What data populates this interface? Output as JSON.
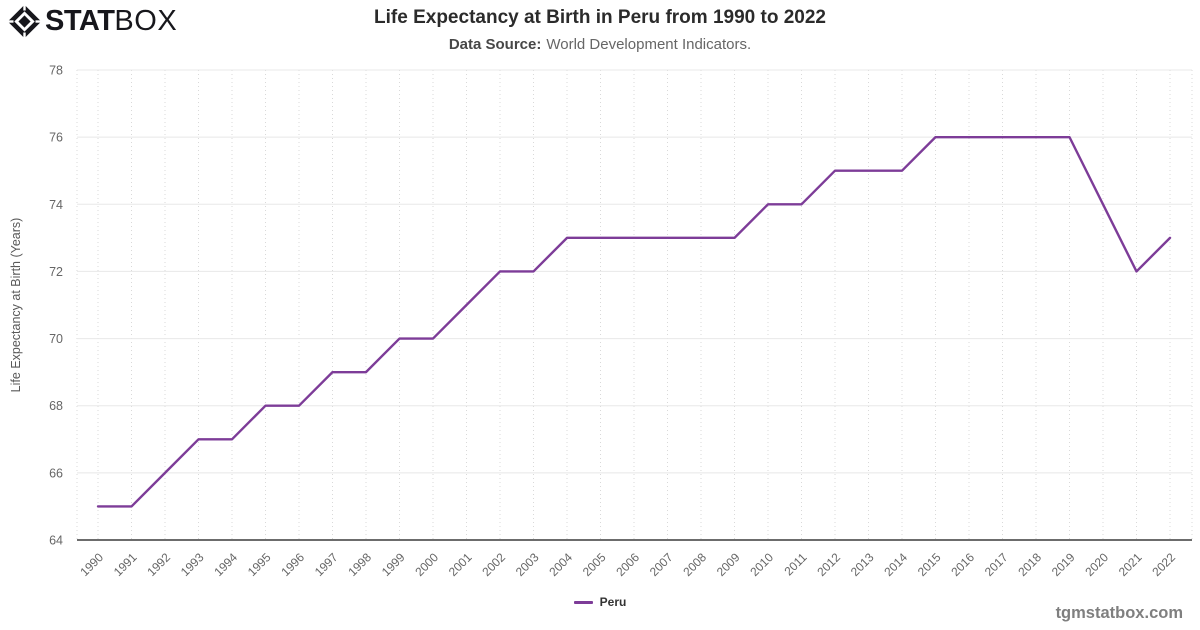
{
  "logo": {
    "stat": "STAT",
    "box": "BOX"
  },
  "header": {
    "title": "Life Expectancy at Birth in Peru from 1990 to 2022",
    "data_source_label": "Data Source:",
    "data_source_value": "World Development Indicators."
  },
  "chart_data": {
    "type": "line",
    "title": "Life Expectancy at Birth in Peru from 1990 to 2022",
    "x": [
      "1990",
      "1991",
      "1992",
      "1993",
      "1994",
      "1995",
      "1996",
      "1997",
      "1998",
      "1999",
      "2000",
      "2001",
      "2002",
      "2003",
      "2004",
      "2005",
      "2006",
      "2007",
      "2008",
      "2009",
      "2010",
      "2011",
      "2012",
      "2013",
      "2014",
      "2015",
      "2016",
      "2017",
      "2018",
      "2019",
      "2020",
      "2021",
      "2022"
    ],
    "series": [
      {
        "name": "Peru",
        "color": "#7D3C98",
        "values": [
          65,
          65,
          66,
          67,
          67,
          68,
          68,
          69,
          69,
          70,
          70,
          71,
          72,
          72,
          73,
          73,
          73,
          73,
          73,
          73,
          74,
          74,
          75,
          75,
          75,
          76,
          76,
          76,
          76,
          76,
          74,
          72,
          73
        ]
      }
    ],
    "xlabel": "",
    "ylabel": "Life Expectancy at Birth (Years)",
    "ylim": [
      64,
      78
    ],
    "yticks": [
      64,
      66,
      68,
      70,
      72,
      74,
      76,
      78
    ],
    "grid": {
      "horizontal": "solid",
      "vertical": "dotted"
    },
    "legend_position": "bottom-center"
  },
  "watermark": "tgmstatbox.com",
  "colors": {
    "line": "#7D3C98",
    "axis": "#3c3c3c",
    "grid_horizontal": "#e8e8e8",
    "grid_vertical": "#d9d9d9",
    "tick_text": "#666666",
    "axis_title_text": "#595959"
  }
}
